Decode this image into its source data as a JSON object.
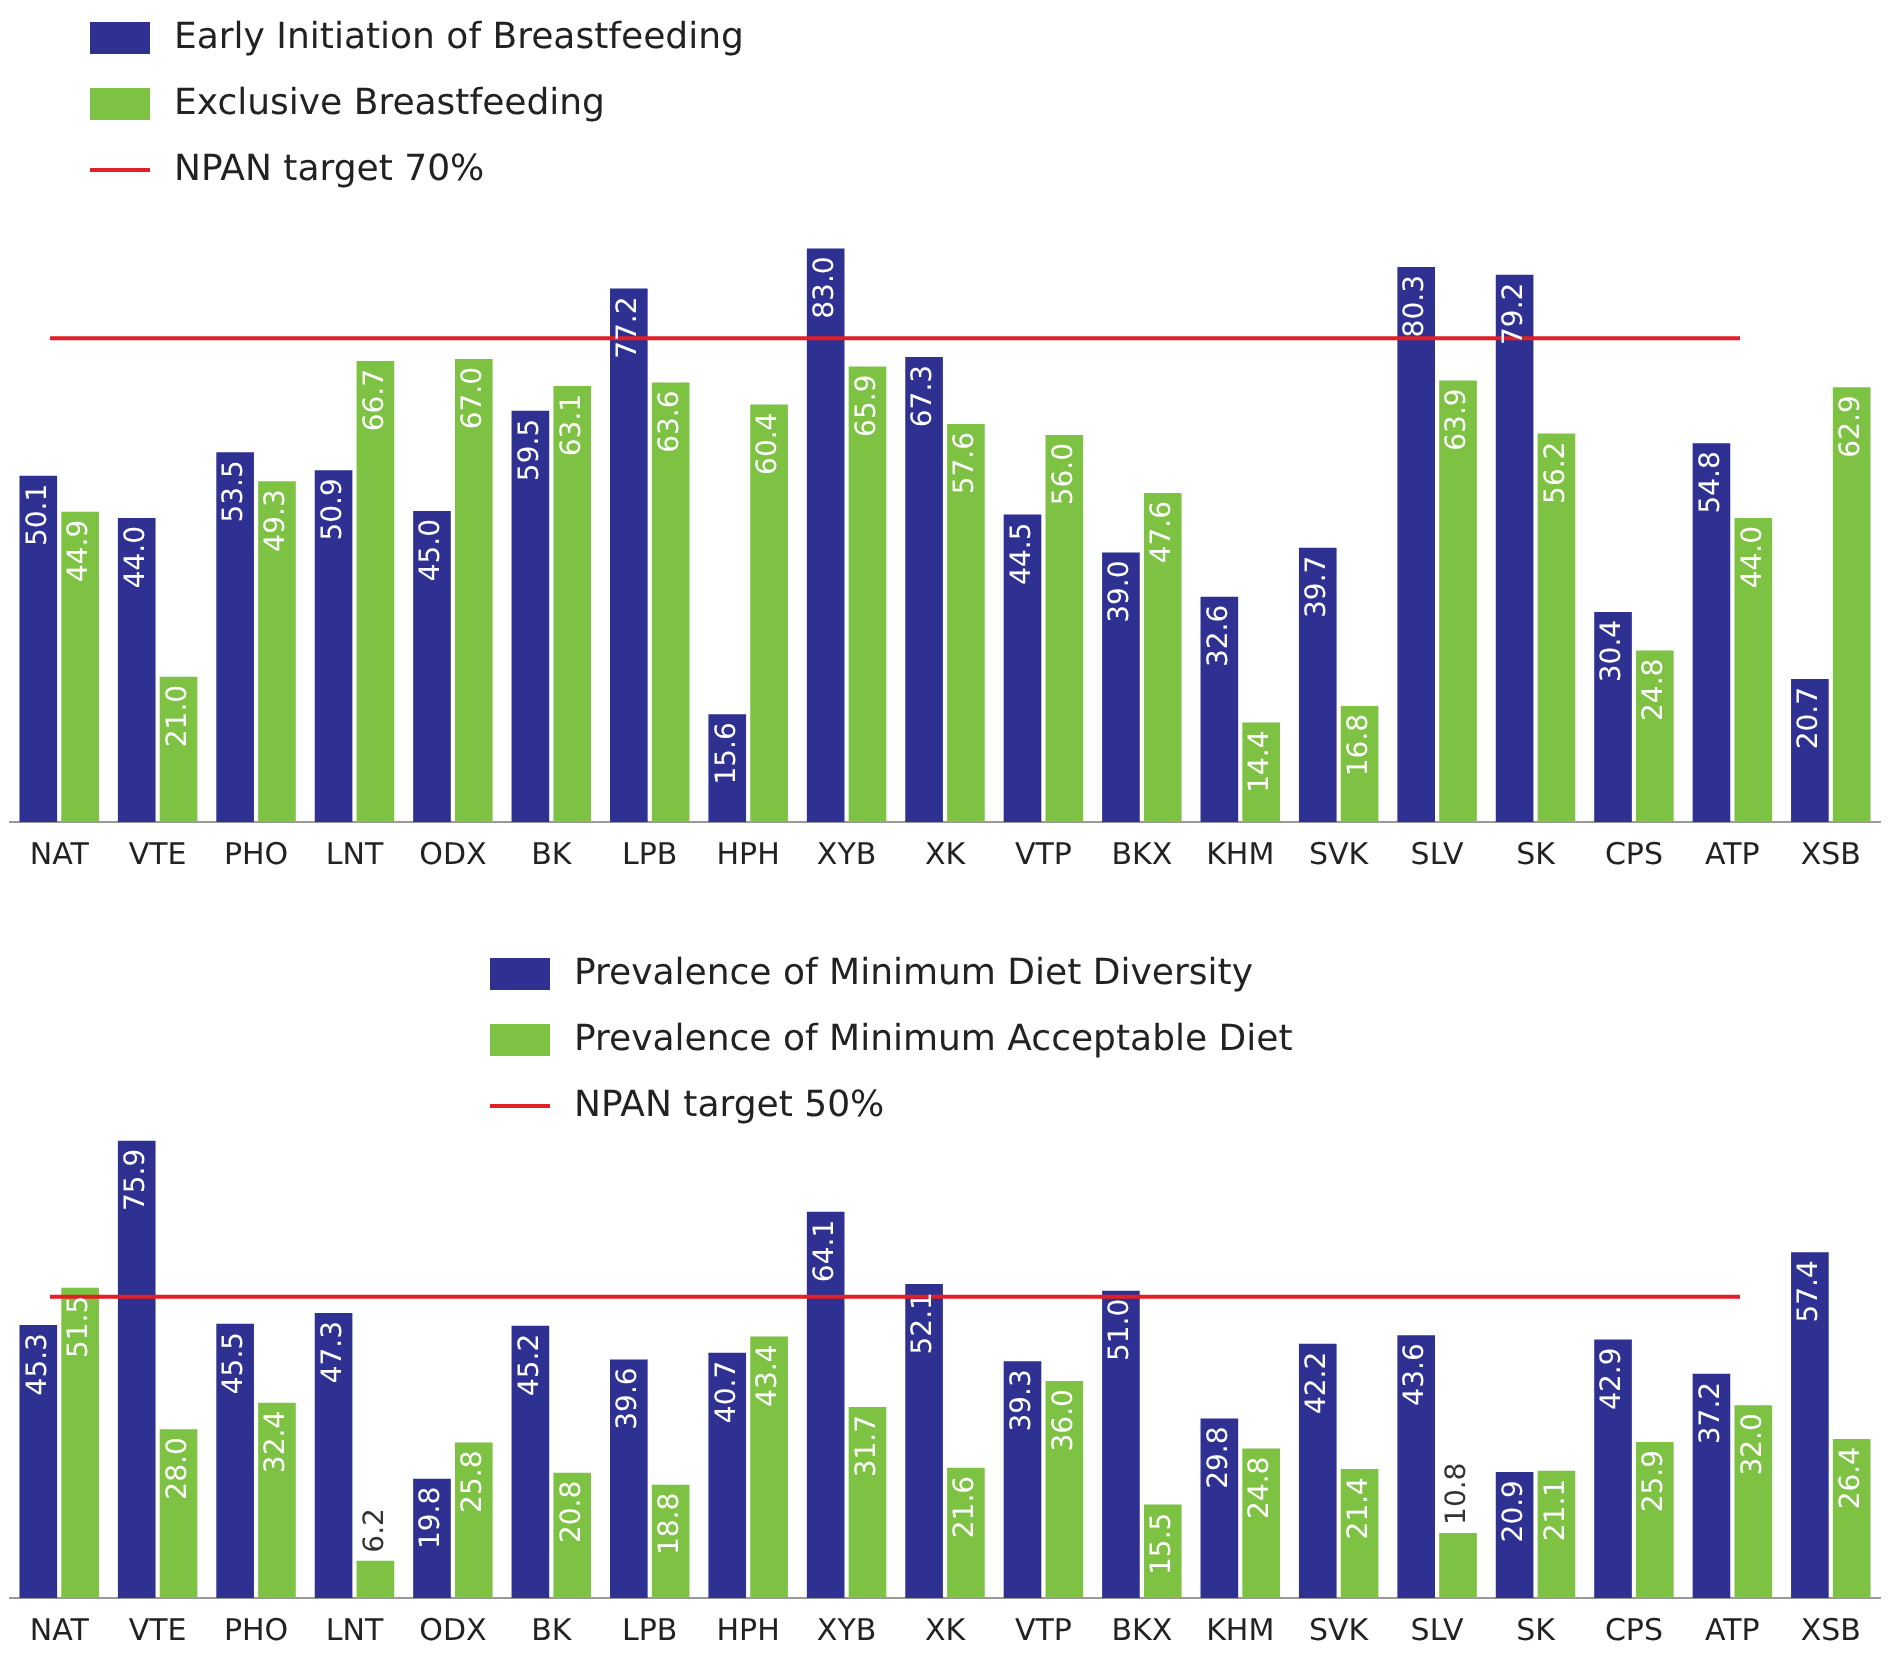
{
  "chart_data": [
    {
      "type": "bar",
      "categories": [
        "NAT",
        "VTE",
        "PHO",
        "LNT",
        "ODX",
        "BK",
        "LPB",
        "HPH",
        "XYB",
        "XK",
        "VTP",
        "BKX",
        "KHM",
        "SVK",
        "SLV",
        "SK",
        "CPS",
        "ATP",
        "XSB"
      ],
      "series": [
        {
          "name": "Early Initiation of Breastfeeding",
          "color": "#2e3192",
          "values": [
            50.1,
            44,
            53.5,
            50.9,
            45,
            59.5,
            77.2,
            15.6,
            83,
            67.3,
            44.5,
            39,
            32.6,
            39.7,
            80.3,
            79.2,
            30.4,
            54.8,
            20.7
          ],
          "value_labels": [
            "50.1",
            "44.0",
            "53.5",
            "50.9",
            "45.0",
            "59.5",
            "77.2",
            "15.6",
            "83.0",
            "67.3",
            "44.5",
            "39.0",
            "32.6",
            "39.7",
            "80.3",
            "79.2",
            "30.4",
            "54.8",
            "20.7"
          ]
        },
        {
          "name": "Exclusive Breastfeeding",
          "color": "#7dc242",
          "values": [
            44.9,
            21,
            49.3,
            66.7,
            67,
            63.1,
            63.6,
            60.4,
            65.9,
            57.6,
            56,
            47.6,
            14.4,
            16.8,
            63.9,
            56.2,
            24.8,
            44,
            62.9
          ],
          "value_labels": [
            "44.9",
            "21.0",
            "49.3",
            "66.7",
            "67.0",
            "63.1",
            "63.6",
            "60.4",
            "65.9",
            "57.6",
            "56.0",
            "47.6",
            "14.4",
            "16.8",
            "63.9",
            "56.2",
            "24.8",
            "44.0",
            "62.9"
          ]
        }
      ],
      "legend": "top left",
      "ref_lines": [
        {
          "axis": "y",
          "value": 70,
          "label": "NPAN target 70%",
          "color": "#e31e24"
        }
      ]
    },
    {
      "type": "bar",
      "categories": [
        "NAT",
        "VTE",
        "PHO",
        "LNT",
        "ODX",
        "BK",
        "LPB",
        "HPH",
        "XYB",
        "XK",
        "VTP",
        "BKX",
        "KHM",
        "SVK",
        "SLV",
        "SK",
        "CPS",
        "ATP",
        "XSB"
      ],
      "series": [
        {
          "name": "Prevalence of Minimum Diet Diversity",
          "color": "#2e3192",
          "values": [
            45.3,
            75.9,
            45.5,
            47.3,
            19.8,
            45.2,
            39.6,
            40.7,
            64.1,
            52.1,
            39.3,
            51,
            29.8,
            42.2,
            43.6,
            20.9,
            42.9,
            37.2,
            57.4
          ],
          "value_labels": [
            "45.3",
            "75.9",
            "45.5",
            "47.3",
            "19.8",
            "45.2",
            "39.6",
            "40.7",
            "64.1",
            "52.1",
            "39.3",
            "51.0",
            "29.8",
            "42.2",
            "43.6",
            "20.9",
            "42.9",
            "37.2",
            "57.4"
          ]
        },
        {
          "name": "Prevalence of Minimum Acceptable Diet",
          "color": "#7dc242",
          "values": [
            51.5,
            28,
            32.4,
            6.2,
            25.8,
            20.8,
            18.8,
            43.4,
            31.7,
            21.6,
            36,
            15.5,
            24.8,
            21.4,
            10.8,
            21.1,
            25.9,
            32,
            26.4
          ],
          "value_labels": [
            "51.5",
            "28.0",
            "32.4",
            "6.2",
            "25.8",
            "20.8",
            "18.8",
            "43.4",
            "31.7",
            "21.6",
            "36.0",
            "15.5",
            "24.8",
            "21.4",
            "10.8",
            "21.1",
            "25.9",
            "32.0",
            "26.4"
          ]
        }
      ],
      "legend": "top",
      "ref_lines": [
        {
          "axis": "y",
          "value": 50,
          "label": "NPAN target 50%",
          "color": "#e31e24"
        }
      ]
    }
  ]
}
